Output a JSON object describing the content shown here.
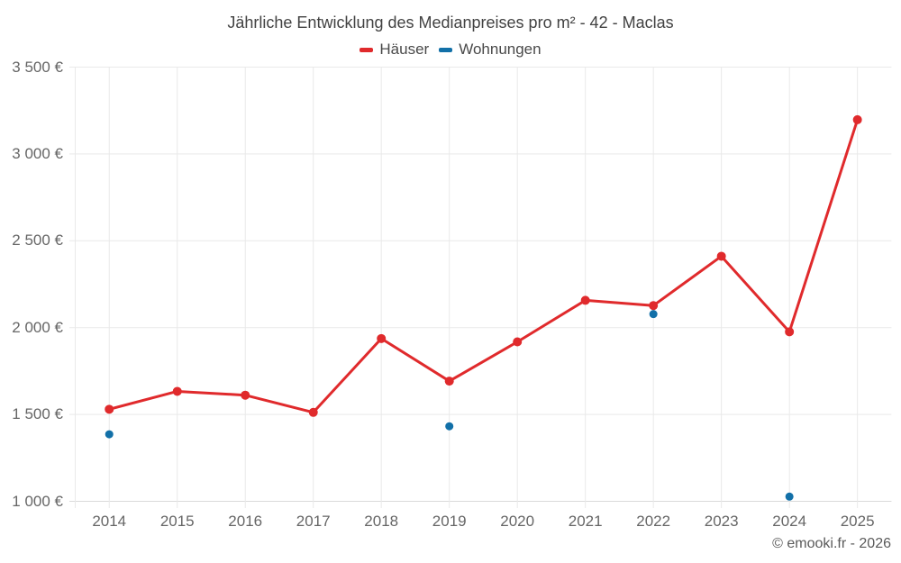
{
  "chart_data": {
    "type": "line",
    "title": "Jährliche Entwicklung des Medianpreises pro m² - 42 - Maclas",
    "categories": [
      "2014",
      "2015",
      "2016",
      "2017",
      "2018",
      "2019",
      "2020",
      "2021",
      "2022",
      "2023",
      "2024",
      "2025"
    ],
    "series": [
      {
        "name": "Häuser",
        "type": "line",
        "color": "#e02a2c",
        "values": [
          1530,
          1633,
          1611,
          1512,
          1937,
          1692,
          1918,
          2157,
          2127,
          2411,
          1976,
          3197
        ]
      },
      {
        "name": "Wohnungen",
        "type": "scatter",
        "color": "#1270a8",
        "values": [
          1386,
          null,
          null,
          null,
          null,
          1432,
          null,
          null,
          2078,
          null,
          1027,
          null
        ]
      }
    ],
    "ylim": [
      1000,
      3500
    ],
    "yticks": [
      {
        "value": 1000,
        "label": "1 000 €"
      },
      {
        "value": 1500,
        "label": "1 500 €"
      },
      {
        "value": 2000,
        "label": "2 000 €"
      },
      {
        "value": 2500,
        "label": "2 500 €"
      },
      {
        "value": 3000,
        "label": "3 000 €"
      },
      {
        "value": 3500,
        "label": "3 500 €"
      }
    ],
    "grid": true,
    "legend_position": "top",
    "xlabel": "",
    "ylabel": ""
  },
  "footer": {
    "copyright": "© emooki.fr - 2026"
  }
}
